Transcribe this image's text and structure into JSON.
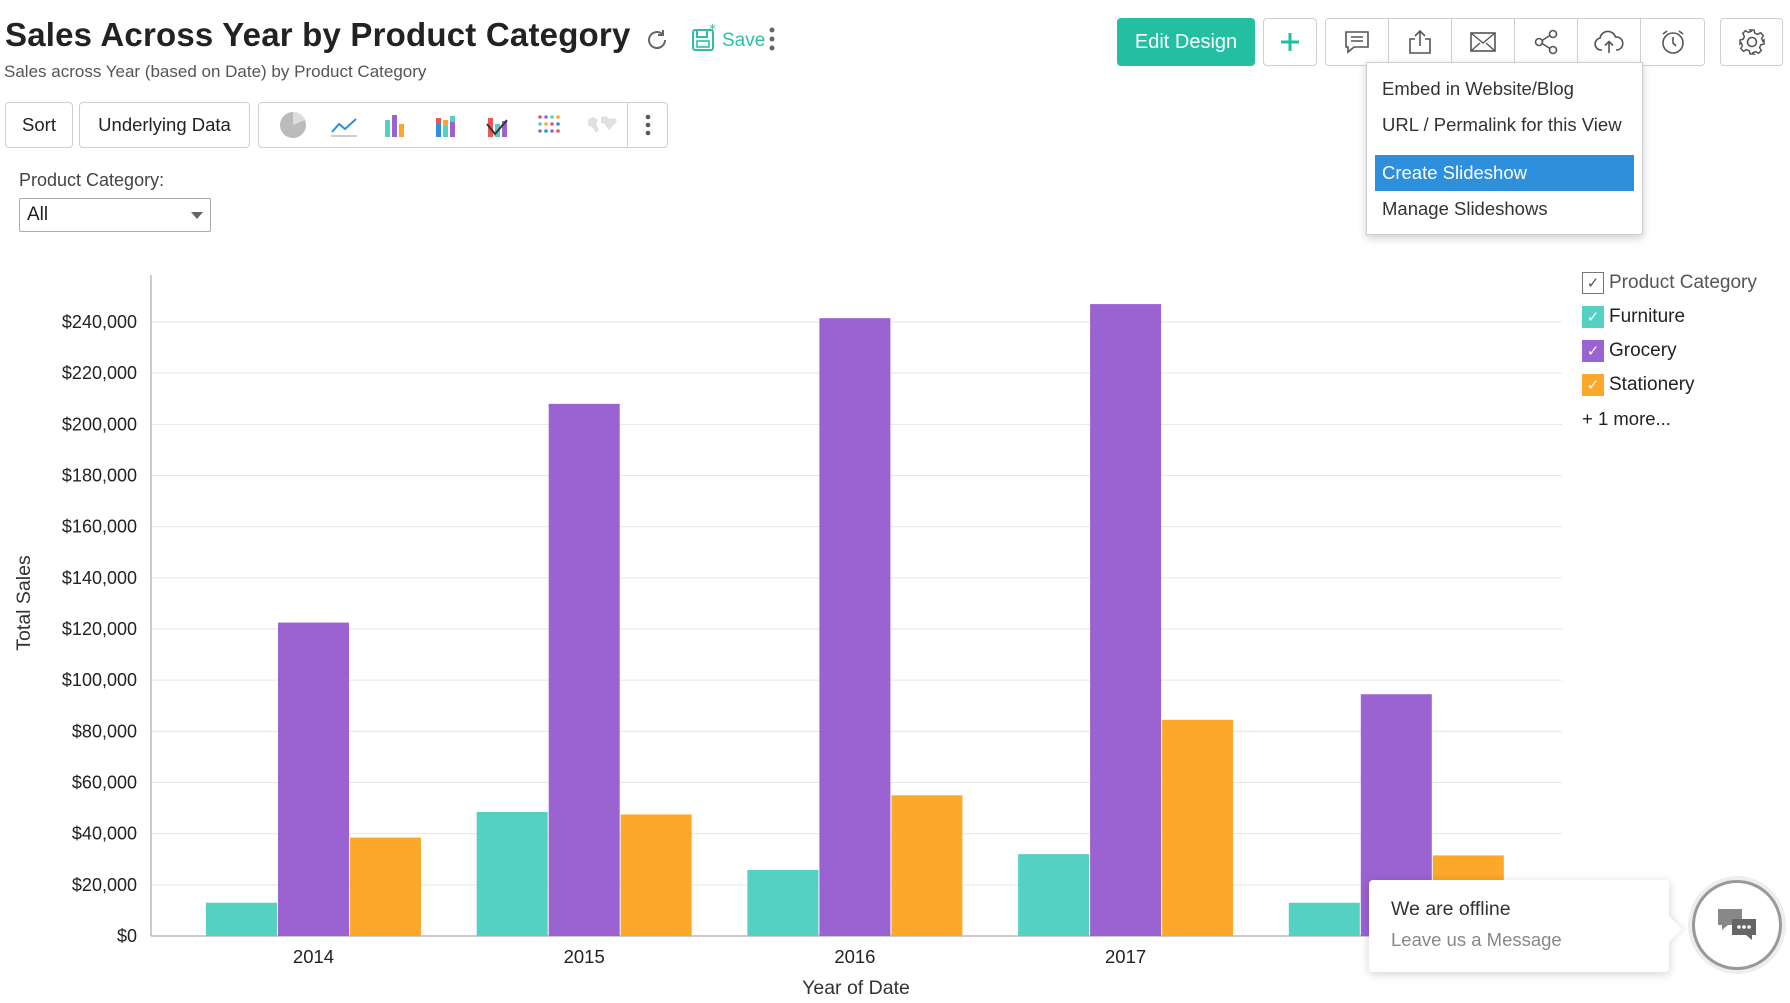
{
  "header": {
    "title": "Sales Across Year by Product Category",
    "subtitle": "Sales across Year (based on Date) by Product Category",
    "save_label": "Save"
  },
  "toolbar": {
    "edit_design_label": "Edit Design",
    "icons": [
      "add-icon",
      "comment-icon",
      "export-icon",
      "email-icon",
      "share-icon",
      "publish-cloud-icon",
      "schedule-alarm-icon",
      "settings-icon"
    ]
  },
  "publish_menu": {
    "items": [
      "Embed in Website/Blog",
      "URL / Permalink for this View",
      "Create Slideshow",
      "Manage Slideshows"
    ],
    "selected": "Create Slideshow"
  },
  "report_bar": {
    "sort_label": "Sort",
    "underlying_label": "Underlying Data"
  },
  "filter": {
    "label": "Product Category:",
    "value": "All"
  },
  "colors": {
    "furniture": "#54d1c2",
    "grocery": "#9a63d1",
    "stationery": "#fca82a",
    "accent": "#22bfa2",
    "selected": "#2e8fdc"
  },
  "chart_data": {
    "type": "bar",
    "title": "Sales Across Year by Product Category",
    "xlabel": "Year of Date",
    "ylabel": "Total Sales",
    "categories": [
      "2014",
      "2015",
      "2016",
      "2017",
      ""
    ],
    "series": [
      {
        "name": "Furniture",
        "values": [
          13000,
          48500,
          25800,
          32000,
          13000
        ]
      },
      {
        "name": "Grocery",
        "values": [
          122500,
          208000,
          241500,
          247000,
          94500
        ]
      },
      {
        "name": "Stationery",
        "values": [
          38500,
          47500,
          55000,
          84500,
          31500
        ]
      }
    ],
    "ylim": [
      0,
      240000
    ],
    "yticks": [
      "$0",
      "$20,000",
      "$40,000",
      "$60,000",
      "$80,000",
      "$100,000",
      "$120,000",
      "$140,000",
      "$160,000",
      "$180,000",
      "$200,000",
      "$220,000",
      "$240,000"
    ],
    "grid": true,
    "legend_position": "right"
  },
  "legend": {
    "title": "Product Category",
    "items": [
      "Furniture",
      "Grocery",
      "Stationery"
    ],
    "more_label": "+ 1 more..."
  },
  "chat": {
    "status": "We are offline",
    "message": "Leave us a Message"
  }
}
